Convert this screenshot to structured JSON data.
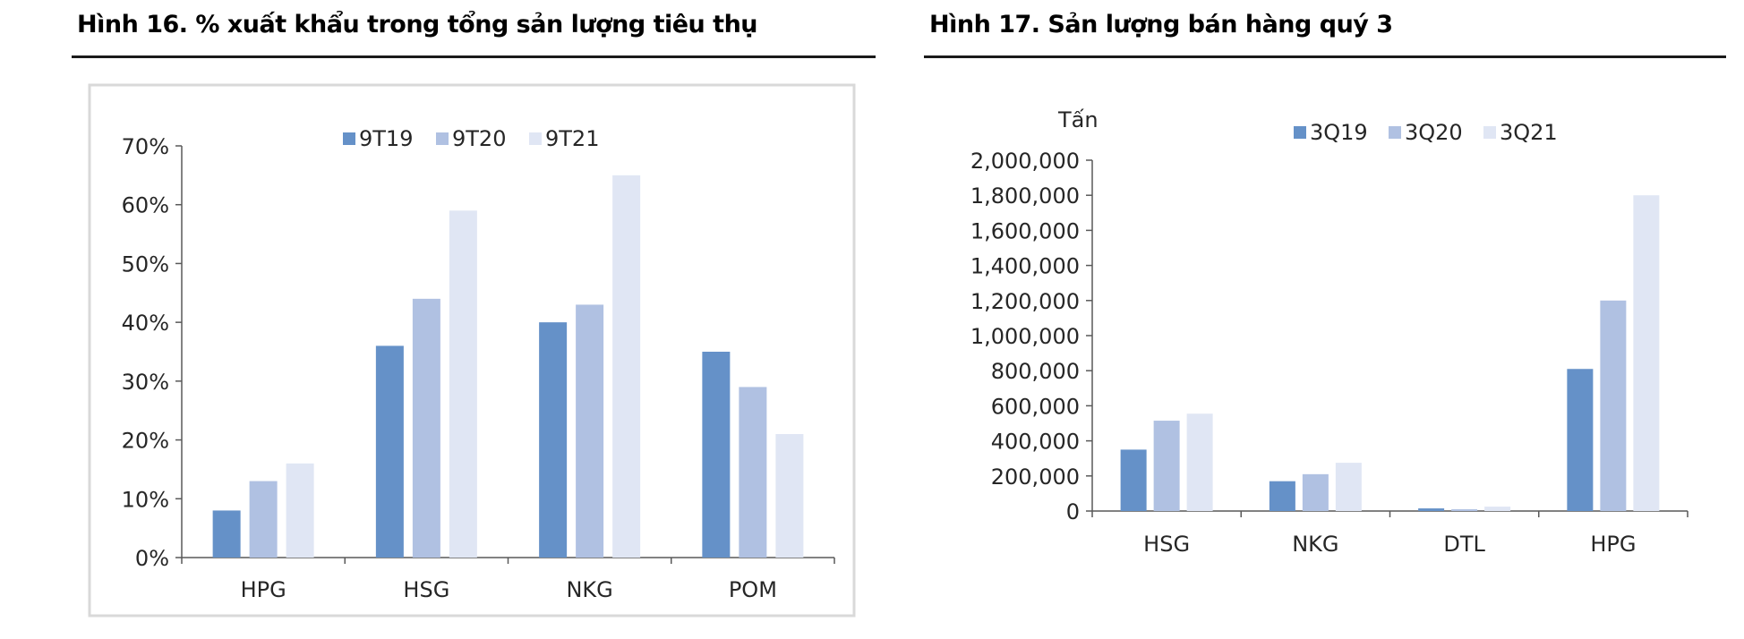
{
  "colors": {
    "series1": "#6591c8",
    "series2": "#b0c1e2",
    "series3": "#e0e6f4",
    "axis": "#595959",
    "frame": "#d9d9d9"
  },
  "figures": [
    {
      "title": "Hình 16. % xuất khẩu trong tổng sản lượng tiêu thụ"
    },
    {
      "title": "Hình 17. Sản lượng bán hàng quý 3"
    }
  ],
  "chart_data": [
    {
      "type": "bar",
      "title": "Hình 16. % xuất khẩu trong tổng sản lượng tiêu thụ",
      "categories": [
        "HPG",
        "HSG",
        "NKG",
        "POM"
      ],
      "series": [
        {
          "name": "9T19",
          "values": [
            8,
            36,
            40,
            35
          ]
        },
        {
          "name": "9T20",
          "values": [
            13,
            44,
            43,
            29
          ]
        },
        {
          "name": "9T21",
          "values": [
            16,
            59,
            65,
            21
          ]
        }
      ],
      "ylim": [
        0,
        70
      ],
      "yticks": [
        "0%",
        "10%",
        "20%",
        "30%",
        "40%",
        "50%",
        "60%",
        "70%"
      ],
      "ylabel": "",
      "xlabel": "",
      "legend": "top",
      "grid": false
    },
    {
      "type": "bar",
      "title": "Hình 17. Sản lượng bán hàng quý 3",
      "categories": [
        "HSG",
        "NKG",
        "DTL",
        "HPG"
      ],
      "series": [
        {
          "name": "3Q19",
          "values": [
            350000,
            170000,
            15000,
            810000
          ]
        },
        {
          "name": "3Q20",
          "values": [
            515000,
            210000,
            10000,
            1200000
          ]
        },
        {
          "name": "3Q21",
          "values": [
            555000,
            275000,
            25000,
            1800000
          ]
        }
      ],
      "ylim": [
        0,
        2000000
      ],
      "yticks": [
        "0",
        "200,000",
        "400,000",
        "600,000",
        "800,000",
        "1,000,000",
        "1,200,000",
        "1,400,000",
        "1,600,000",
        "1,800,000",
        "2,000,000"
      ],
      "ylabel": "Tấn",
      "xlabel": "",
      "legend": "top",
      "grid": false
    }
  ]
}
